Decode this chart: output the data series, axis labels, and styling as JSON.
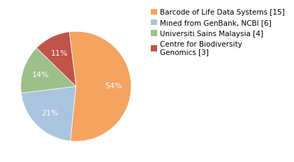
{
  "labels": [
    "Barcode of Life Data Systems [15]",
    "Mined from GenBank, NCBI [6]",
    "Universiti Sains Malaysia [4]",
    "Centre for Biodiversity\nGenomics [3]"
  ],
  "values": [
    15,
    6,
    4,
    3
  ],
  "colors": [
    "#F4A460",
    "#AAC4E0",
    "#9DC08B",
    "#C0534A"
  ],
  "startangle": 97,
  "text_color": "white",
  "legend_labels": [
    "Barcode of Life Data Systems [15]",
    "Mined from GenBank, NCBI [6]",
    "Universiti Sains Malaysia [4]",
    "Centre for Biodiversity\nGenomics [3]"
  ],
  "legend_colors": [
    "#F4A460",
    "#AAC4E0",
    "#9DC08B",
    "#C0534A"
  ],
  "autopct_fontsize": 8,
  "legend_fontsize": 7.5
}
